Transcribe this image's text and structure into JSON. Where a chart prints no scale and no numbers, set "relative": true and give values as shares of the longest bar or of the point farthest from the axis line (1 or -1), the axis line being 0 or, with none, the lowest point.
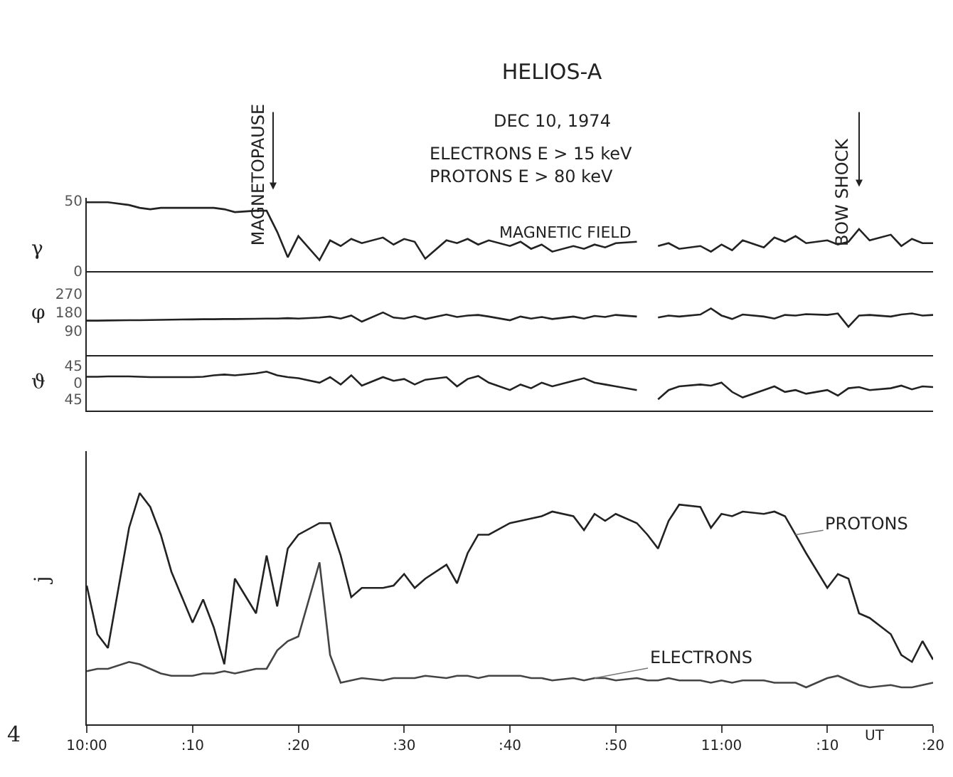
{
  "chart_data": [
    {
      "type": "line",
      "title": "HELIOS-A",
      "subtitle": "DEC 10, 1974",
      "ylabel": "γ",
      "annotations": [
        "ELECTRONS E > 15 keV",
        "PROTONS E > 80 keV",
        "MAGNETIC FIELD",
        "MAGNETOPAUSE",
        "BOW SHOCK"
      ],
      "x": [
        "1974-12-10T10:00",
        "1974-12-10T10:01",
        "1974-12-10T10:02",
        "1974-12-10T10:04",
        "1974-12-10T10:05",
        "1974-12-10T10:06",
        "1974-12-10T10:07",
        "1974-12-10T10:08",
        "1974-12-10T10:10",
        "1974-12-10T10:11",
        "1974-12-10T10:12",
        "1974-12-10T10:13",
        "1974-12-10T10:14",
        "1974-12-10T10:16",
        "1974-12-10T10:17",
        "1974-12-10T10:18",
        "1974-12-10T10:19",
        "1974-12-10T10:20",
        "1974-12-10T10:22",
        "1974-12-10T10:23",
        "1974-12-10T10:24",
        "1974-12-10T10:25",
        "1974-12-10T10:26",
        "1974-12-10T10:28",
        "1974-12-10T10:29",
        "1974-12-10T10:30",
        "1974-12-10T10:31",
        "1974-12-10T10:32",
        "1974-12-10T10:34",
        "1974-12-10T10:35",
        "1974-12-10T10:36",
        "1974-12-10T10:37",
        "1974-12-10T10:38",
        "1974-12-10T10:40",
        "1974-12-10T10:41",
        "1974-12-10T10:42",
        "1974-12-10T10:43",
        "1974-12-10T10:44",
        "1974-12-10T10:46",
        "1974-12-10T10:47",
        "1974-12-10T10:48",
        "1974-12-10T10:49",
        "1974-12-10T10:50",
        "1974-12-10T10:52",
        "1974-12-10T10:53",
        "1974-12-10T10:54",
        "1974-12-10T10:55",
        "1974-12-10T10:56",
        "1974-12-10T10:58",
        "1974-12-10T10:59",
        "1974-12-10T11:00",
        "1974-12-10T11:01",
        "1974-12-10T11:02",
        "1974-12-10T11:04",
        "1974-12-10T11:05",
        "1974-12-10T11:06",
        "1974-12-10T11:07",
        "1974-12-10T11:08",
        "1974-12-10T11:10",
        "1974-12-10T11:11",
        "1974-12-10T11:12",
        "1974-12-10T11:13",
        "1974-12-10T11:14",
        "1974-12-10T11:16",
        "1974-12-10T11:17",
        "1974-12-10T11:18",
        "1974-12-10T11:19",
        "1974-12-10T11:20"
      ],
      "series": [
        {
          "color": "#222222",
          "values": [
            49,
            49,
            49,
            47,
            45,
            44,
            45,
            45,
            45,
            45,
            45,
            44,
            42,
            43,
            43,
            28,
            10,
            25,
            8,
            22,
            18,
            23,
            20,
            24,
            19,
            23,
            21,
            9,
            22,
            20,
            23,
            19,
            22,
            18,
            21,
            16,
            19,
            14,
            18,
            16,
            19,
            17,
            20,
            21,
            null,
            18,
            20,
            16,
            18,
            14,
            19,
            15,
            22,
            17,
            24,
            21,
            25,
            20,
            22,
            19,
            21,
            30,
            22,
            26,
            18,
            23,
            20,
            20
          ]
        }
      ],
      "xlim": [
        "1974-12-10T10:00",
        "1974-12-10T11:20"
      ],
      "ylim": [
        0,
        52
      ],
      "yticks": [
        0,
        50
      ],
      "tick_labels": "y",
      "grid": false,
      "legend": false
    },
    {
      "type": "line",
      "ylabel": "φ",
      "x": [
        "1974-12-10T10:00",
        "1974-12-10T10:01",
        "1974-12-10T10:02",
        "1974-12-10T10:04",
        "1974-12-10T10:05",
        "1974-12-10T10:06",
        "1974-12-10T10:07",
        "1974-12-10T10:08",
        "1974-12-10T10:10",
        "1974-12-10T10:11",
        "1974-12-10T10:12",
        "1974-12-10T10:13",
        "1974-12-10T10:14",
        "1974-12-10T10:16",
        "1974-12-10T10:17",
        "1974-12-10T10:18",
        "1974-12-10T10:19",
        "1974-12-10T10:20",
        "1974-12-10T10:22",
        "1974-12-10T10:23",
        "1974-12-10T10:24",
        "1974-12-10T10:25",
        "1974-12-10T10:26",
        "1974-12-10T10:28",
        "1974-12-10T10:29",
        "1974-12-10T10:30",
        "1974-12-10T10:31",
        "1974-12-10T10:32",
        "1974-12-10T10:34",
        "1974-12-10T10:35",
        "1974-12-10T10:36",
        "1974-12-10T10:37",
        "1974-12-10T10:38",
        "1974-12-10T10:40",
        "1974-12-10T10:41",
        "1974-12-10T10:42",
        "1974-12-10T10:43",
        "1974-12-10T10:44",
        "1974-12-10T10:46",
        "1974-12-10T10:47",
        "1974-12-10T10:48",
        "1974-12-10T10:49",
        "1974-12-10T10:50",
        "1974-12-10T10:52",
        "1974-12-10T10:53",
        "1974-12-10T10:54",
        "1974-12-10T10:55",
        "1974-12-10T10:56",
        "1974-12-10T10:58",
        "1974-12-10T10:59",
        "1974-12-10T11:00",
        "1974-12-10T11:01",
        "1974-12-10T11:02",
        "1974-12-10T11:04",
        "1974-12-10T11:05",
        "1974-12-10T11:06",
        "1974-12-10T11:07",
        "1974-12-10T11:08",
        "1974-12-10T11:10",
        "1974-12-10T11:11",
        "1974-12-10T11:12",
        "1974-12-10T11:13",
        "1974-12-10T11:14",
        "1974-12-10T11:16",
        "1974-12-10T11:17",
        "1974-12-10T11:18",
        "1974-12-10T11:19",
        "1974-12-10T11:20"
      ],
      "series": [
        {
          "color": "#222222",
          "values": [
            140,
            140,
            141,
            142,
            142,
            143,
            144,
            145,
            146,
            147,
            147,
            148,
            148,
            149,
            150,
            150,
            152,
            150,
            155,
            160,
            150,
            165,
            135,
            180,
            155,
            150,
            162,
            148,
            170,
            158,
            165,
            168,
            160,
            142,
            160,
            150,
            158,
            148,
            160,
            150,
            163,
            158,
            168,
            160,
            null,
            155,
            165,
            160,
            170,
            200,
            165,
            148,
            170,
            160,
            150,
            168,
            165,
            172,
            168,
            175,
            110,
            165,
            168,
            160,
            170,
            175,
            165,
            168
          ]
        }
      ],
      "xlim": [
        "1974-12-10T10:00",
        "1974-12-10T11:20"
      ],
      "ylim": [
        -28,
        381
      ],
      "yticks": [
        90,
        180,
        270
      ],
      "tick_labels": "y",
      "grid": false,
      "legend": false
    },
    {
      "type": "line",
      "ylabel": "ϑ",
      "x": [
        "1974-12-10T10:00",
        "1974-12-10T10:01",
        "1974-12-10T10:02",
        "1974-12-10T10:04",
        "1974-12-10T10:05",
        "1974-12-10T10:06",
        "1974-12-10T10:07",
        "1974-12-10T10:08",
        "1974-12-10T10:10",
        "1974-12-10T10:11",
        "1974-12-10T10:12",
        "1974-12-10T10:13",
        "1974-12-10T10:14",
        "1974-12-10T10:16",
        "1974-12-10T10:17",
        "1974-12-10T10:18",
        "1974-12-10T10:19",
        "1974-12-10T10:20",
        "1974-12-10T10:22",
        "1974-12-10T10:23",
        "1974-12-10T10:24",
        "1974-12-10T10:25",
        "1974-12-10T10:26",
        "1974-12-10T10:28",
        "1974-12-10T10:29",
        "1974-12-10T10:30",
        "1974-12-10T10:31",
        "1974-12-10T10:32",
        "1974-12-10T10:34",
        "1974-12-10T10:35",
        "1974-12-10T10:36",
        "1974-12-10T10:37",
        "1974-12-10T10:38",
        "1974-12-10T10:40",
        "1974-12-10T10:41",
        "1974-12-10T10:42",
        "1974-12-10T10:43",
        "1974-12-10T10:44",
        "1974-12-10T10:46",
        "1974-12-10T10:47",
        "1974-12-10T10:48",
        "1974-12-10T10:49",
        "1974-12-10T10:50",
        "1974-12-10T10:52",
        "1974-12-10T10:53",
        "1974-12-10T10:54",
        "1974-12-10T10:55",
        "1974-12-10T10:56",
        "1974-12-10T10:58",
        "1974-12-10T10:59",
        "1974-12-10T11:00",
        "1974-12-10T11:01",
        "1974-12-10T11:02",
        "1974-12-10T11:04",
        "1974-12-10T11:05",
        "1974-12-10T11:06",
        "1974-12-10T11:07",
        "1974-12-10T11:08",
        "1974-12-10T11:10",
        "1974-12-10T11:11",
        "1974-12-10T11:12",
        "1974-12-10T11:13",
        "1974-12-10T11:14",
        "1974-12-10T11:16",
        "1974-12-10T11:17",
        "1974-12-10T11:18",
        "1974-12-10T11:19",
        "1974-12-10T11:20"
      ],
      "series": [
        {
          "color": "#222222",
          "values": [
            16,
            16,
            17,
            17,
            16,
            15,
            15,
            15,
            15,
            16,
            20,
            22,
            20,
            25,
            30,
            20,
            15,
            12,
            0,
            15,
            -5,
            20,
            -8,
            15,
            5,
            10,
            -5,
            8,
            15,
            -10,
            10,
            18,
            0,
            -20,
            -5,
            -15,
            0,
            -10,
            5,
            12,
            0,
            -5,
            -10,
            -20,
            null,
            -45,
            -20,
            -10,
            -5,
            -8,
            0,
            -25,
            -40,
            -20,
            -10,
            -25,
            -20,
            -30,
            -20,
            -35,
            -15,
            -12,
            -20,
            -15,
            -8,
            -18,
            -10,
            -12
          ]
        }
      ],
      "xlim": [
        "1974-12-10T10:00",
        "1974-12-10T11:20"
      ],
      "ylim": [
        -75,
        75
      ],
      "yticks": [
        {
          "value": 45,
          "label": "45"
        },
        0,
        {
          "value": -45,
          "label": "45"
        }
      ],
      "tick_labels": "y",
      "grid": false,
      "legend": false
    },
    {
      "type": "line",
      "relative": true,
      "ylabel": "j",
      "annotations": [
        "4"
      ],
      "x": [
        "1974-12-10T10:00",
        "1974-12-10T10:01",
        "1974-12-10T10:02",
        "1974-12-10T10:04",
        "1974-12-10T10:05",
        "1974-12-10T10:06",
        "1974-12-10T10:07",
        "1974-12-10T10:08",
        "1974-12-10T10:10",
        "1974-12-10T10:11",
        "1974-12-10T10:12",
        "1974-12-10T10:13",
        "1974-12-10T10:14",
        "1974-12-10T10:16",
        "1974-12-10T10:17",
        "1974-12-10T10:18",
        "1974-12-10T10:19",
        "1974-12-10T10:20",
        "1974-12-10T10:22",
        "1974-12-10T10:23",
        "1974-12-10T10:24",
        "1974-12-10T10:25",
        "1974-12-10T10:26",
        "1974-12-10T10:28",
        "1974-12-10T10:29",
        "1974-12-10T10:30",
        "1974-12-10T10:31",
        "1974-12-10T10:32",
        "1974-12-10T10:34",
        "1974-12-10T10:35",
        "1974-12-10T10:36",
        "1974-12-10T10:37",
        "1974-12-10T10:38",
        "1974-12-10T10:40",
        "1974-12-10T10:41",
        "1974-12-10T10:42",
        "1974-12-10T10:43",
        "1974-12-10T10:44",
        "1974-12-10T10:46",
        "1974-12-10T10:47",
        "1974-12-10T10:48",
        "1974-12-10T10:49",
        "1974-12-10T10:50",
        "1974-12-10T10:52",
        "1974-12-10T10:53",
        "1974-12-10T10:54",
        "1974-12-10T10:55",
        "1974-12-10T10:56",
        "1974-12-10T10:58",
        "1974-12-10T10:59",
        "1974-12-10T11:00",
        "1974-12-10T11:01",
        "1974-12-10T11:02",
        "1974-12-10T11:04",
        "1974-12-10T11:05",
        "1974-12-10T11:06",
        "1974-12-10T11:07",
        "1974-12-10T11:08",
        "1974-12-10T11:10",
        "1974-12-10T11:11",
        "1974-12-10T11:12",
        "1974-12-10T11:13",
        "1974-12-10T11:14",
        "1974-12-10T11:16",
        "1974-12-10T11:17",
        "1974-12-10T11:18",
        "1974-12-10T11:19",
        "1974-12-10T11:20"
      ],
      "series": [
        {
          "name": "PROTONS",
          "color": "#222222",
          "values": [
            0.6,
            0.39,
            0.33,
            0.85,
            1.0,
            0.94,
            0.82,
            0.66,
            0.44,
            0.54,
            0.42,
            0.26,
            0.63,
            0.48,
            0.73,
            0.51,
            0.76,
            0.82,
            0.87,
            0.87,
            0.73,
            0.55,
            0.59,
            0.59,
            0.6,
            0.65,
            0.59,
            0.63,
            0.69,
            0.61,
            0.74,
            0.82,
            0.82,
            0.87,
            0.88,
            0.89,
            0.9,
            0.92,
            0.9,
            0.84,
            0.91,
            0.88,
            0.91,
            0.87,
            0.82,
            0.76,
            0.88,
            0.95,
            0.94,
            0.85,
            0.91,
            0.9,
            0.92,
            0.91,
            0.92,
            0.9,
            0.82,
            0.74,
            0.59,
            0.65,
            0.63,
            0.48,
            0.46,
            0.39,
            0.3,
            0.27,
            0.36,
            0.28
          ]
        },
        {
          "name": "ELECTRONS",
          "color": "#444444",
          "values": [
            0.23,
            0.24,
            0.24,
            0.27,
            0.26,
            0.24,
            0.22,
            0.21,
            0.21,
            0.22,
            0.22,
            0.23,
            0.22,
            0.24,
            0.24,
            0.32,
            0.36,
            0.38,
            0.7,
            0.3,
            0.18,
            0.19,
            0.2,
            0.19,
            0.2,
            0.2,
            0.2,
            0.21,
            0.2,
            0.21,
            0.21,
            0.2,
            0.21,
            0.21,
            0.21,
            0.2,
            0.2,
            0.19,
            0.2,
            0.19,
            0.2,
            0.2,
            0.19,
            0.2,
            0.19,
            0.19,
            0.2,
            0.19,
            0.19,
            0.18,
            0.19,
            0.18,
            0.19,
            0.19,
            0.18,
            0.18,
            0.18,
            0.16,
            0.2,
            0.21,
            0.19,
            0.17,
            0.16,
            0.17,
            0.16,
            0.16,
            0.17,
            0.18
          ]
        }
      ],
      "xlabel": "UT",
      "xlim": [
        "1974-12-10T10:00",
        "1974-12-10T11:20"
      ],
      "xticks": [
        {
          "value": "1974-12-10T10:00",
          "label": "10:00"
        },
        {
          "value": "1974-12-10T10:10",
          "label": ":10"
        },
        {
          "value": "1974-12-10T10:20",
          "label": ":20"
        },
        {
          "value": "1974-12-10T10:30",
          "label": ":30"
        },
        {
          "value": "1974-12-10T10:40",
          "label": ":40"
        },
        {
          "value": "1974-12-10T10:50",
          "label": ":50"
        },
        {
          "value": "1974-12-10T11:00",
          "label": "11:00"
        },
        {
          "value": "1974-12-10T11:10",
          "label": ":10"
        },
        {
          "value": "1974-12-10T11:20",
          "label": ":20"
        }
      ],
      "tick_labels": "x",
      "grid": false,
      "legend": false
    }
  ]
}
